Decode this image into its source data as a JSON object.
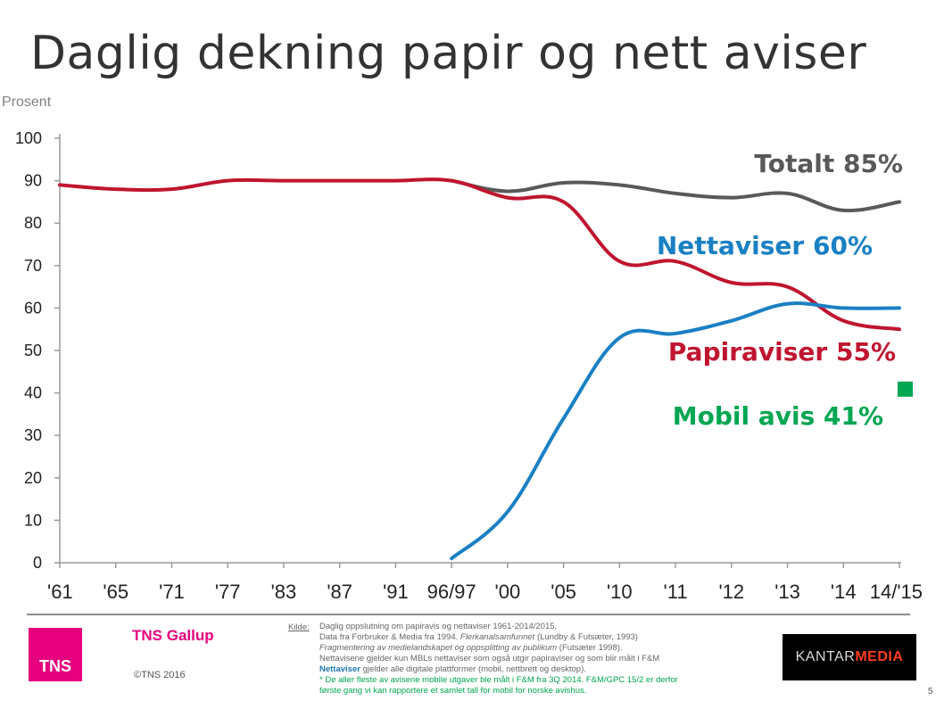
{
  "title": "Daglig dekning papir og nett aviser",
  "chart_data": {
    "type": "line",
    "ylabel": "Prosent",
    "ylim": [
      0,
      100
    ],
    "yticks": [
      0,
      10,
      20,
      30,
      40,
      50,
      60,
      70,
      80,
      90,
      100
    ],
    "categories": [
      "'61",
      "'65",
      "'71",
      "'77",
      "'83",
      "'87",
      "'91",
      "96/97",
      "'00",
      "'05",
      "'10",
      "'11",
      "'12",
      "'13",
      "'14",
      "14/'15"
    ],
    "grid": false,
    "series": [
      {
        "name": "Totalt 85%",
        "color": "#595959",
        "values": [
          null,
          null,
          null,
          null,
          null,
          null,
          null,
          90,
          87.5,
          89.5,
          89,
          87,
          86,
          87,
          83,
          85
        ]
      },
      {
        "name": "Papiraviser 55%",
        "color": "#c0152f",
        "values": [
          89,
          88,
          88,
          90,
          90,
          90,
          90,
          90,
          86,
          85,
          71,
          71,
          66,
          65,
          57,
          55
        ]
      },
      {
        "name": "Nettaviser 60%",
        "color": "#1a80c4",
        "values": [
          null,
          null,
          null,
          null,
          null,
          null,
          null,
          1,
          12,
          34,
          53,
          54,
          57,
          61,
          60,
          60
        ]
      },
      {
        "name": "Mobil avis 41%",
        "color": "#00a651",
        "marker": "square",
        "values": [
          null,
          null,
          null,
          null,
          null,
          null,
          null,
          null,
          null,
          null,
          null,
          null,
          null,
          null,
          null,
          41
        ]
      }
    ]
  },
  "footer": {
    "tns_logo": "TNS",
    "brand": "TNS Gallup",
    "copyright": "©TNS 2016",
    "source_label": "Kilde:",
    "source_lines": [
      "Daglig oppslutning om papiravis og nettaviser 1961-2014/2015.",
      "Data fra Forbruker & Media fra 1994."
    ],
    "source_line2_italic": "Flerkanalsamfunnet",
    "source_line2_end": " (Lundby & Futsæter, 1993)",
    "source_line3_italic": "Fragmentering av medielandskapet og oppsplitting av publikum",
    "source_line3_end": " (Futsæter 1998).",
    "source_line4": "Nettavisene gjelder kun MBLs nettaviser som også utgir papiraviser og som blir målt i F&M",
    "source_line5_bold": "Nettaviser",
    "source_line5_end": " gjelder alle digitale plattformer (mobil, nettbrett og desktop).",
    "source_line6": "* De aller fleste av avisene mobile utgaver ble målt i F&M fra 3Q 2014. F&M/GPC 15/2 er derfor",
    "source_line7": "første gang vi kan rapportere et samlet tall for mobil for norske avishus.",
    "kantar_1": "KANTAR",
    "kantar_2": "MEDIA",
    "page_number": "5"
  }
}
